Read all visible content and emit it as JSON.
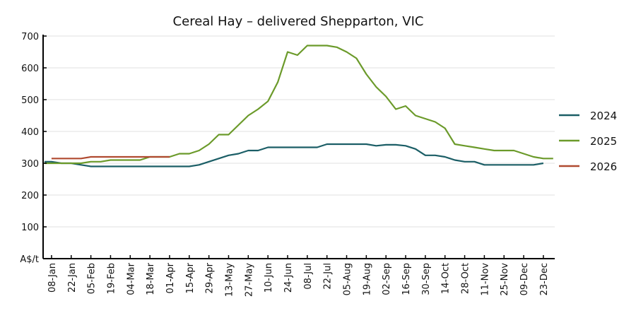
{
  "chart_data": {
    "type": "line",
    "title": "Cereal Hay – delivered Shepparton, VIC",
    "xlabel": "",
    "ylabel": "A$/t",
    "ylim": [
      0,
      700
    ],
    "yticks": [
      100,
      200,
      300,
      400,
      500,
      600,
      700
    ],
    "ytick_zero_label": "A$/t",
    "grid": true,
    "legend_position": "right",
    "x": [
      "01-Jan",
      "08-Jan",
      "15-Jan",
      "22-Jan",
      "29-Jan",
      "05-Feb",
      "12-Feb",
      "19-Feb",
      "26-Feb",
      "04-Mar",
      "11-Mar",
      "18-Mar",
      "25-Mar",
      "01-Apr",
      "08-Apr",
      "15-Apr",
      "22-Apr",
      "29-Apr",
      "06-May",
      "13-May",
      "20-May",
      "27-May",
      "03-Jun",
      "10-Jun",
      "17-Jun",
      "24-Jun",
      "01-Jul",
      "08-Jul",
      "15-Jul",
      "22-Jul",
      "29-Jul",
      "05-Aug",
      "12-Aug",
      "19-Aug",
      "26-Aug",
      "02-Sep",
      "09-Sep",
      "16-Sep",
      "23-Sep",
      "30-Sep",
      "07-Oct",
      "14-Oct",
      "21-Oct",
      "28-Oct",
      "04-Nov",
      "11-Nov",
      "18-Nov",
      "25-Nov",
      "02-Dec",
      "09-Dec",
      "16-Dec",
      "23-Dec",
      "30-Dec"
    ],
    "xtick_labels": [
      "08-Jan",
      "22-Jan",
      "05-Feb",
      "19-Feb",
      "04-Mar",
      "18-Mar",
      "01-Apr",
      "15-Apr",
      "29-Apr",
      "13-May",
      "27-May",
      "10-Jun",
      "24-Jun",
      "08-Jul",
      "22-Jul",
      "05-Aug",
      "19-Aug",
      "02-Sep",
      "16-Sep",
      "30-Sep",
      "14-Oct",
      "28-Oct",
      "11-Nov",
      "25-Nov",
      "09-Dec",
      "23-Dec"
    ],
    "series": [
      {
        "name": "2024",
        "color": "#1b5e66",
        "values": [
          305,
          305,
          300,
          300,
          295,
          290,
          290,
          290,
          290,
          290,
          290,
          290,
          290,
          290,
          290,
          290,
          295,
          305,
          315,
          325,
          330,
          340,
          340,
          350,
          350,
          350,
          350,
          350,
          350,
          360,
          360,
          360,
          360,
          360,
          355,
          358,
          358,
          355,
          345,
          325,
          325,
          320,
          310,
          305,
          305,
          295,
          295,
          295,
          295,
          295,
          295,
          300,
          null
        ]
      },
      {
        "name": "2025",
        "color": "#6b9a2a",
        "values": [
          300,
          300,
          300,
          300,
          300,
          305,
          305,
          310,
          310,
          310,
          310,
          320,
          320,
          320,
          330,
          330,
          340,
          360,
          390,
          390,
          420,
          450,
          470,
          495,
          555,
          650,
          640,
          670,
          670,
          670,
          665,
          650,
          630,
          580,
          540,
          510,
          470,
          480,
          450,
          440,
          430,
          410,
          360,
          355,
          350,
          345,
          340,
          340,
          340,
          330,
          320,
          315,
          315
        ]
      },
      {
        "name": "2026",
        "color": "#b04a30",
        "values": [
          null,
          315,
          315,
          315,
          315,
          320,
          320,
          320,
          320,
          320,
          320,
          320,
          320,
          320,
          null,
          null,
          null,
          null,
          null,
          null,
          null,
          null,
          null,
          null,
          null,
          null,
          null,
          null,
          null,
          null,
          null,
          null,
          null,
          null,
          null,
          null,
          null,
          null,
          null,
          null,
          null,
          null,
          null,
          null,
          null,
          null,
          null,
          null,
          null,
          null,
          null,
          null,
          null
        ]
      }
    ]
  }
}
